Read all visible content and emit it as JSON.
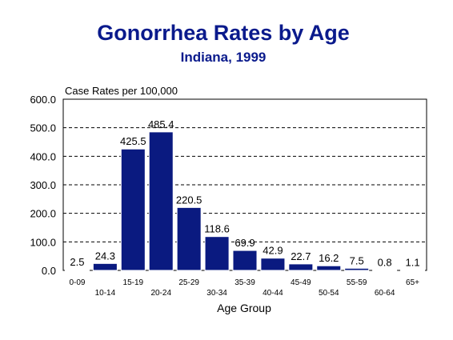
{
  "chart_data": {
    "type": "bar",
    "title": "Gonorrhea Rates by Age",
    "subtitle": "Indiana, 1999",
    "ylabel": "Case Rates per 100,000",
    "xlabel": "Age Group",
    "ylim": [
      0,
      600
    ],
    "yticks": [
      "0.0",
      "100.0",
      "200.0",
      "300.0",
      "400.0",
      "500.0",
      "600.0"
    ],
    "grid": "horizontal dashed",
    "categories": [
      "0-09",
      "10-14",
      "15-19",
      "20-24",
      "25-29",
      "30-34",
      "35-39",
      "40-44",
      "45-49",
      "50-54",
      "55-59",
      "60-64",
      "65+"
    ],
    "values": [
      2.5,
      24.3,
      425.5,
      485.4,
      220.5,
      118.6,
      69.9,
      42.9,
      22.7,
      16.2,
      7.5,
      0.8,
      1.1
    ],
    "value_labels": [
      "2.5",
      "24.3",
      "425.5",
      "485.4",
      "220.5",
      "118.6",
      "69.9",
      "42.9",
      "22.7",
      "16.2",
      "7.5",
      "0.8",
      "1.1"
    ],
    "bar_color": "#0a1a80"
  }
}
